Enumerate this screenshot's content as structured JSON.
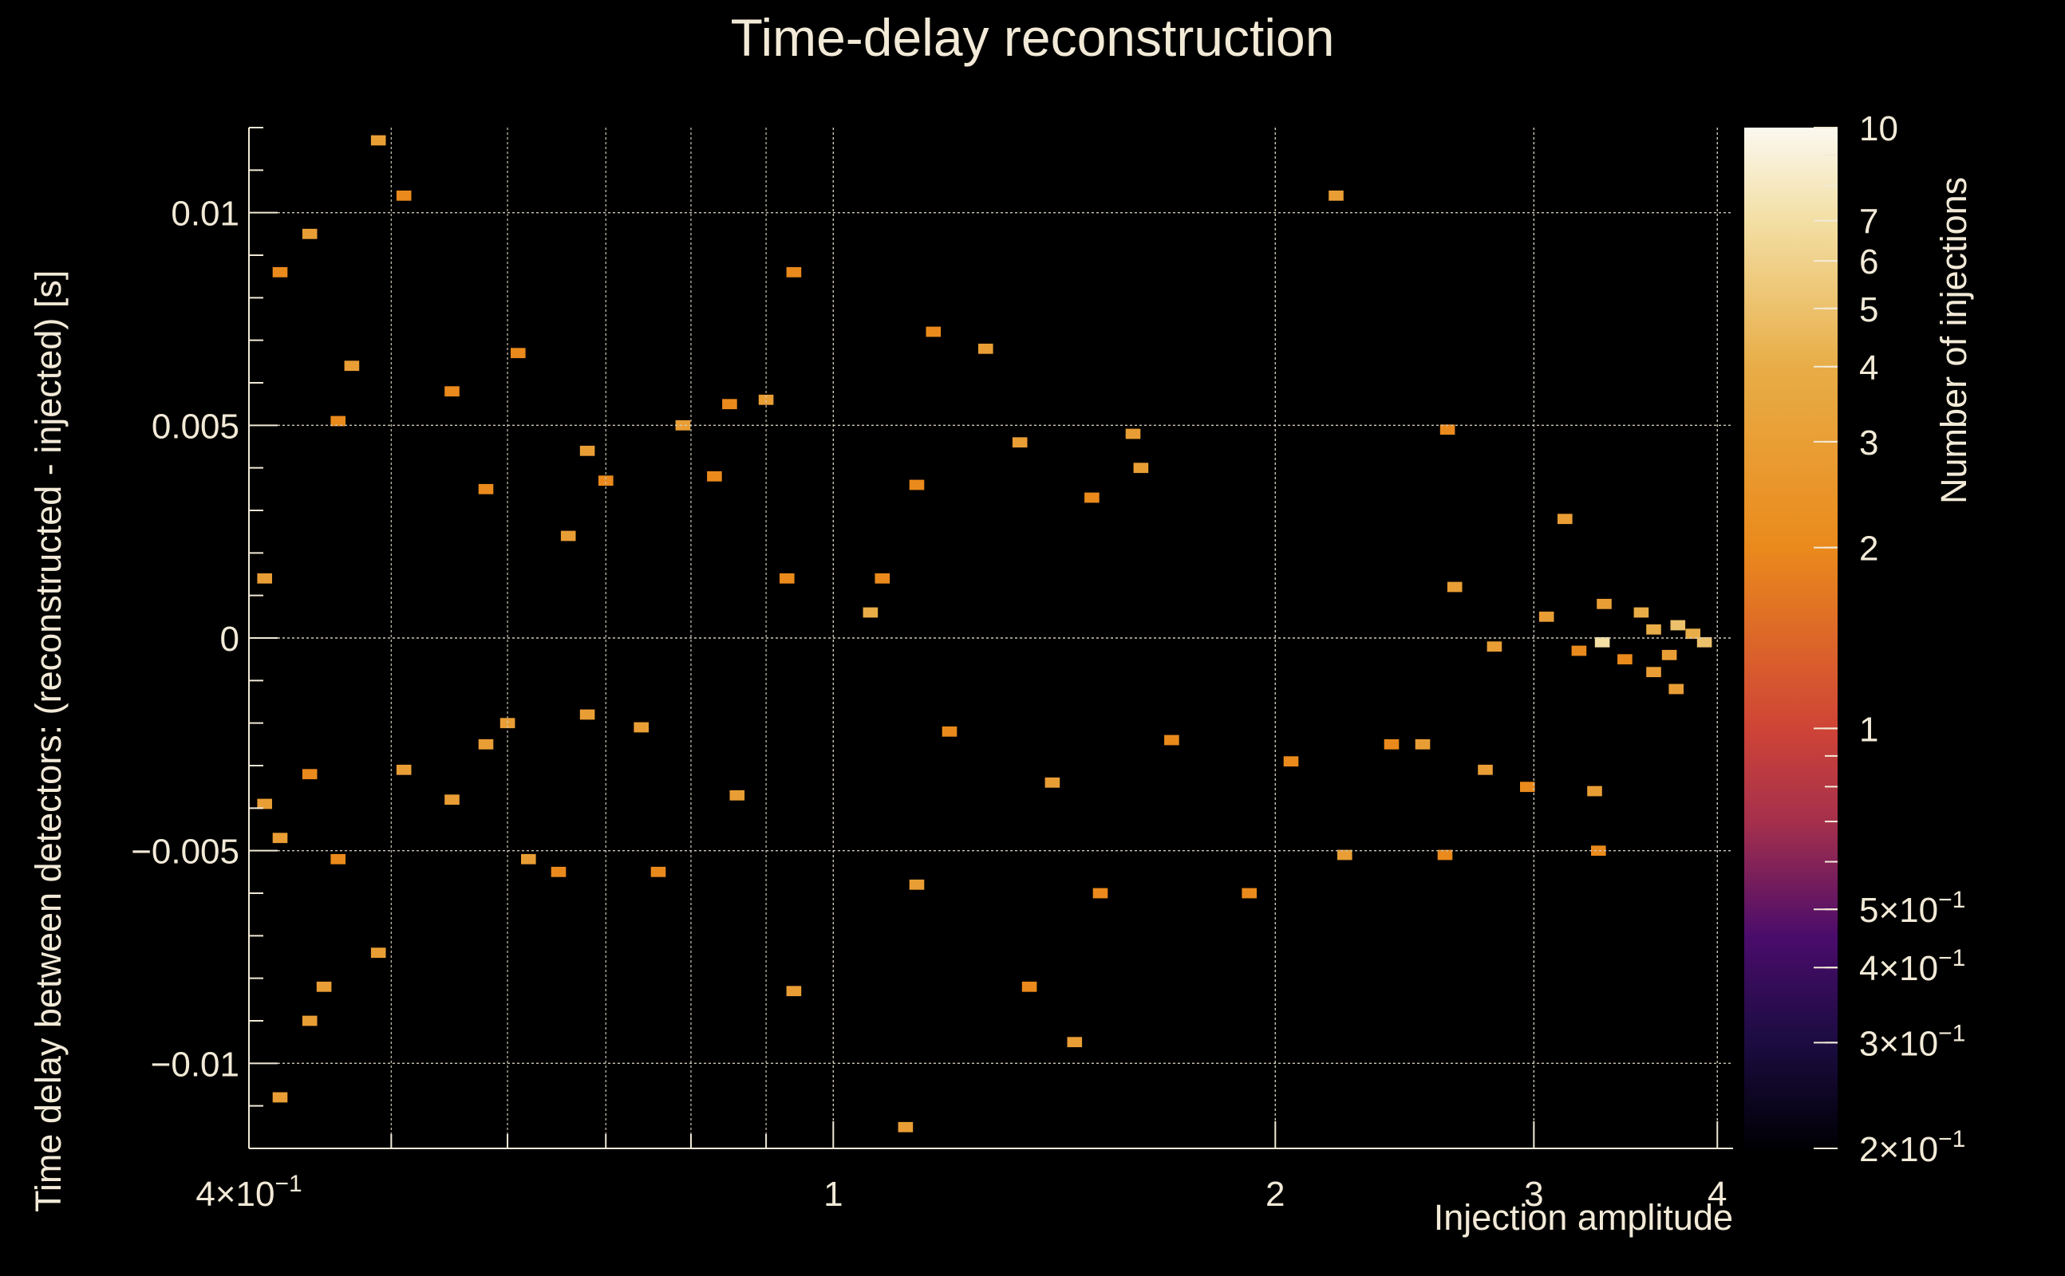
{
  "chart_data": {
    "type": "heatmap",
    "title": "Time-delay reconstruction",
    "xlabel": "Injection amplitude",
    "ylabel": "Time delay between detectors: (reconstructed - injected) [s]",
    "zlabel": "Number of injections",
    "x_scale": "log",
    "y_scale": "linear",
    "z_scale": "log",
    "xlim": [
      0.4,
      4.1
    ],
    "ylim": [
      -0.012,
      0.012
    ],
    "zlim": [
      0.2,
      10
    ],
    "grid": true,
    "x_ticks": [
      {
        "value": 0.4,
        "base": "4",
        "exp": "−1"
      },
      {
        "value": 1,
        "label": "1"
      },
      {
        "value": 2,
        "label": "2"
      },
      {
        "value": 3,
        "label": "3"
      },
      {
        "value": 4,
        "label": "4"
      }
    ],
    "y_ticks": [
      {
        "value": 0.01,
        "label": "0.01"
      },
      {
        "value": 0.005,
        "label": "0.005"
      },
      {
        "value": 0,
        "label": "0"
      },
      {
        "value": -0.005,
        "label": "−0.005"
      },
      {
        "value": -0.01,
        "label": "−0.01"
      }
    ],
    "z_ticks": [
      {
        "value": 10,
        "label": "10"
      },
      {
        "value": 7,
        "label": "7"
      },
      {
        "value": 6,
        "label": "6"
      },
      {
        "value": 5,
        "label": "5"
      },
      {
        "value": 4,
        "label": "4"
      },
      {
        "value": 3,
        "label": "3"
      },
      {
        "value": 2,
        "label": "2"
      },
      {
        "value": 1,
        "label": "1"
      },
      {
        "value": 0.5,
        "base": "5",
        "exp": "−1"
      },
      {
        "value": 0.4,
        "base": "4",
        "exp": "−1"
      },
      {
        "value": 0.3,
        "base": "3",
        "exp": "−1"
      },
      {
        "value": 0.2,
        "base": "2",
        "exp": "−1"
      }
    ],
    "bins": {
      "nx": 100,
      "ny": 100
    },
    "cells": [
      {
        "x": 0.44,
        "y": 0.0095,
        "z": 3
      },
      {
        "x": 0.49,
        "y": 0.0117,
        "z": 3
      },
      {
        "x": 0.51,
        "y": 0.0104,
        "z": 2
      },
      {
        "x": 0.55,
        "y": 0.0058,
        "z": 2
      },
      {
        "x": 0.47,
        "y": 0.0064,
        "z": 3
      },
      {
        "x": 0.61,
        "y": 0.0067,
        "z": 2
      },
      {
        "x": 0.58,
        "y": 0.0035,
        "z": 2
      },
      {
        "x": 0.66,
        "y": 0.0024,
        "z": 3
      },
      {
        "x": 0.68,
        "y": 0.0044,
        "z": 3
      },
      {
        "x": 0.7,
        "y": 0.0037,
        "z": 2
      },
      {
        "x": 0.79,
        "y": 0.005,
        "z": 3
      },
      {
        "x": 0.85,
        "y": 0.0055,
        "z": 2
      },
      {
        "x": 0.9,
        "y": 0.0056,
        "z": 3
      },
      {
        "x": 0.94,
        "y": 0.0086,
        "z": 2
      },
      {
        "x": 1.14,
        "y": 0.0036,
        "z": 2
      },
      {
        "x": 1.17,
        "y": 0.0072,
        "z": 2
      },
      {
        "x": 1.27,
        "y": 0.0068,
        "z": 3
      },
      {
        "x": 1.34,
        "y": 0.0046,
        "z": 3
      },
      {
        "x": 1.5,
        "y": 0.0033,
        "z": 2
      },
      {
        "x": 1.62,
        "y": 0.004,
        "z": 3
      },
      {
        "x": 1.6,
        "y": 0.0048,
        "z": 3
      },
      {
        "x": 1.08,
        "y": 0.0014,
        "z": 2
      },
      {
        "x": 1.06,
        "y": 0.0006,
        "z": 4
      },
      {
        "x": 2.2,
        "y": 0.0104,
        "z": 3
      },
      {
        "x": 2.65,
        "y": 0.0012,
        "z": 3
      },
      {
        "x": 3.35,
        "y": 0.0008,
        "z": 3
      },
      {
        "x": 3.55,
        "y": 0.0006,
        "z": 4
      },
      {
        "x": 3.62,
        "y": 0.0002,
        "z": 4
      },
      {
        "x": 3.76,
        "y": 0.0003,
        "z": 5
      },
      {
        "x": 3.85,
        "y": 0.0001,
        "z": 4
      },
      {
        "x": 3.92,
        "y": -0.0001,
        "z": 5
      },
      {
        "x": 3.34,
        "y": -0.0001,
        "z": 7
      },
      {
        "x": 3.06,
        "y": 0.0005,
        "z": 3
      },
      {
        "x": 3.71,
        "y": -0.0004,
        "z": 3
      },
      {
        "x": 2.82,
        "y": -0.0002,
        "z": 3
      },
      {
        "x": 3.22,
        "y": -0.0003,
        "z": 2
      },
      {
        "x": 3.46,
        "y": -0.0005,
        "z": 2
      },
      {
        "x": 3.62,
        "y": -0.0008,
        "z": 3
      },
      {
        "x": 3.75,
        "y": -0.0012,
        "z": 3
      },
      {
        "x": 2.52,
        "y": -0.0025,
        "z": 3
      },
      {
        "x": 2.4,
        "y": -0.0025,
        "z": 2
      },
      {
        "x": 2.78,
        "y": -0.0031,
        "z": 3
      },
      {
        "x": 2.23,
        "y": -0.0051,
        "z": 3
      },
      {
        "x": 1.92,
        "y": -0.006,
        "z": 2
      },
      {
        "x": 1.52,
        "y": -0.006,
        "z": 2
      },
      {
        "x": 1.36,
        "y": -0.0082,
        "z": 2
      },
      {
        "x": 1.46,
        "y": -0.0095,
        "z": 3
      },
      {
        "x": 1.12,
        "y": -0.0115,
        "z": 3
      },
      {
        "x": 0.86,
        "y": -0.0037,
        "z": 3
      },
      {
        "x": 0.74,
        "y": -0.0021,
        "z": 3
      },
      {
        "x": 0.6,
        "y": -0.002,
        "z": 3
      },
      {
        "x": 0.58,
        "y": -0.0025,
        "z": 3
      },
      {
        "x": 0.68,
        "y": -0.0018,
        "z": 3
      },
      {
        "x": 0.51,
        "y": -0.0031,
        "z": 3
      },
      {
        "x": 0.55,
        "y": -0.0038,
        "z": 3
      },
      {
        "x": 0.44,
        "y": -0.0032,
        "z": 2
      },
      {
        "x": 0.41,
        "y": -0.0039,
        "z": 3
      },
      {
        "x": 0.42,
        "y": -0.0047,
        "z": 3
      },
      {
        "x": 0.46,
        "y": -0.0052,
        "z": 2
      },
      {
        "x": 0.49,
        "y": -0.0074,
        "z": 3
      },
      {
        "x": 0.45,
        "y": -0.0082,
        "z": 3
      },
      {
        "x": 0.44,
        "y": -0.009,
        "z": 3
      },
      {
        "x": 0.42,
        "y": -0.0108,
        "z": 3
      },
      {
        "x": 0.62,
        "y": -0.0052,
        "z": 3
      },
      {
        "x": 0.65,
        "y": -0.0055,
        "z": 2
      },
      {
        "x": 0.76,
        "y": -0.0055,
        "z": 2
      },
      {
        "x": 0.94,
        "y": -0.0083,
        "z": 3
      },
      {
        "x": 1.14,
        "y": -0.0058,
        "z": 3
      },
      {
        "x": 1.7,
        "y": -0.0024,
        "z": 2
      },
      {
        "x": 2.05,
        "y": -0.0029,
        "z": 2
      },
      {
        "x": 2.97,
        "y": -0.0035,
        "z": 2
      },
      {
        "x": 3.3,
        "y": -0.0036,
        "z": 3
      },
      {
        "x": 3.32,
        "y": -0.005,
        "z": 2
      },
      {
        "x": 2.61,
        "y": -0.0051,
        "z": 2
      },
      {
        "x": 1.2,
        "y": -0.0022,
        "z": 2
      },
      {
        "x": 0.93,
        "y": 0.0014,
        "z": 2
      },
      {
        "x": 0.83,
        "y": 0.0038,
        "z": 2
      },
      {
        "x": 0.41,
        "y": 0.0014,
        "z": 3
      },
      {
        "x": 0.42,
        "y": 0.0086,
        "z": 2
      },
      {
        "x": 0.46,
        "y": 0.0051,
        "z": 2
      },
      {
        "x": 1.41,
        "y": -0.0034,
        "z": 3
      },
      {
        "x": 2.62,
        "y": 0.0049,
        "z": 2
      },
      {
        "x": 3.15,
        "y": 0.0028,
        "z": 3
      }
    ],
    "colormap": [
      {
        "z": 0.2,
        "color": "#000004"
      },
      {
        "z": 0.3,
        "color": "#1b0c41"
      },
      {
        "z": 0.45,
        "color": "#4a0c6b"
      },
      {
        "z": 0.7,
        "color": "#a5304c"
      },
      {
        "z": 1.0,
        "color": "#cf4436"
      },
      {
        "z": 2.0,
        "color": "#ea8a1c"
      },
      {
        "z": 4.0,
        "color": "#e8ad47"
      },
      {
        "z": 7.0,
        "color": "#f3dfa4"
      },
      {
        "z": 10.0,
        "color": "#fbf8ef"
      }
    ]
  }
}
